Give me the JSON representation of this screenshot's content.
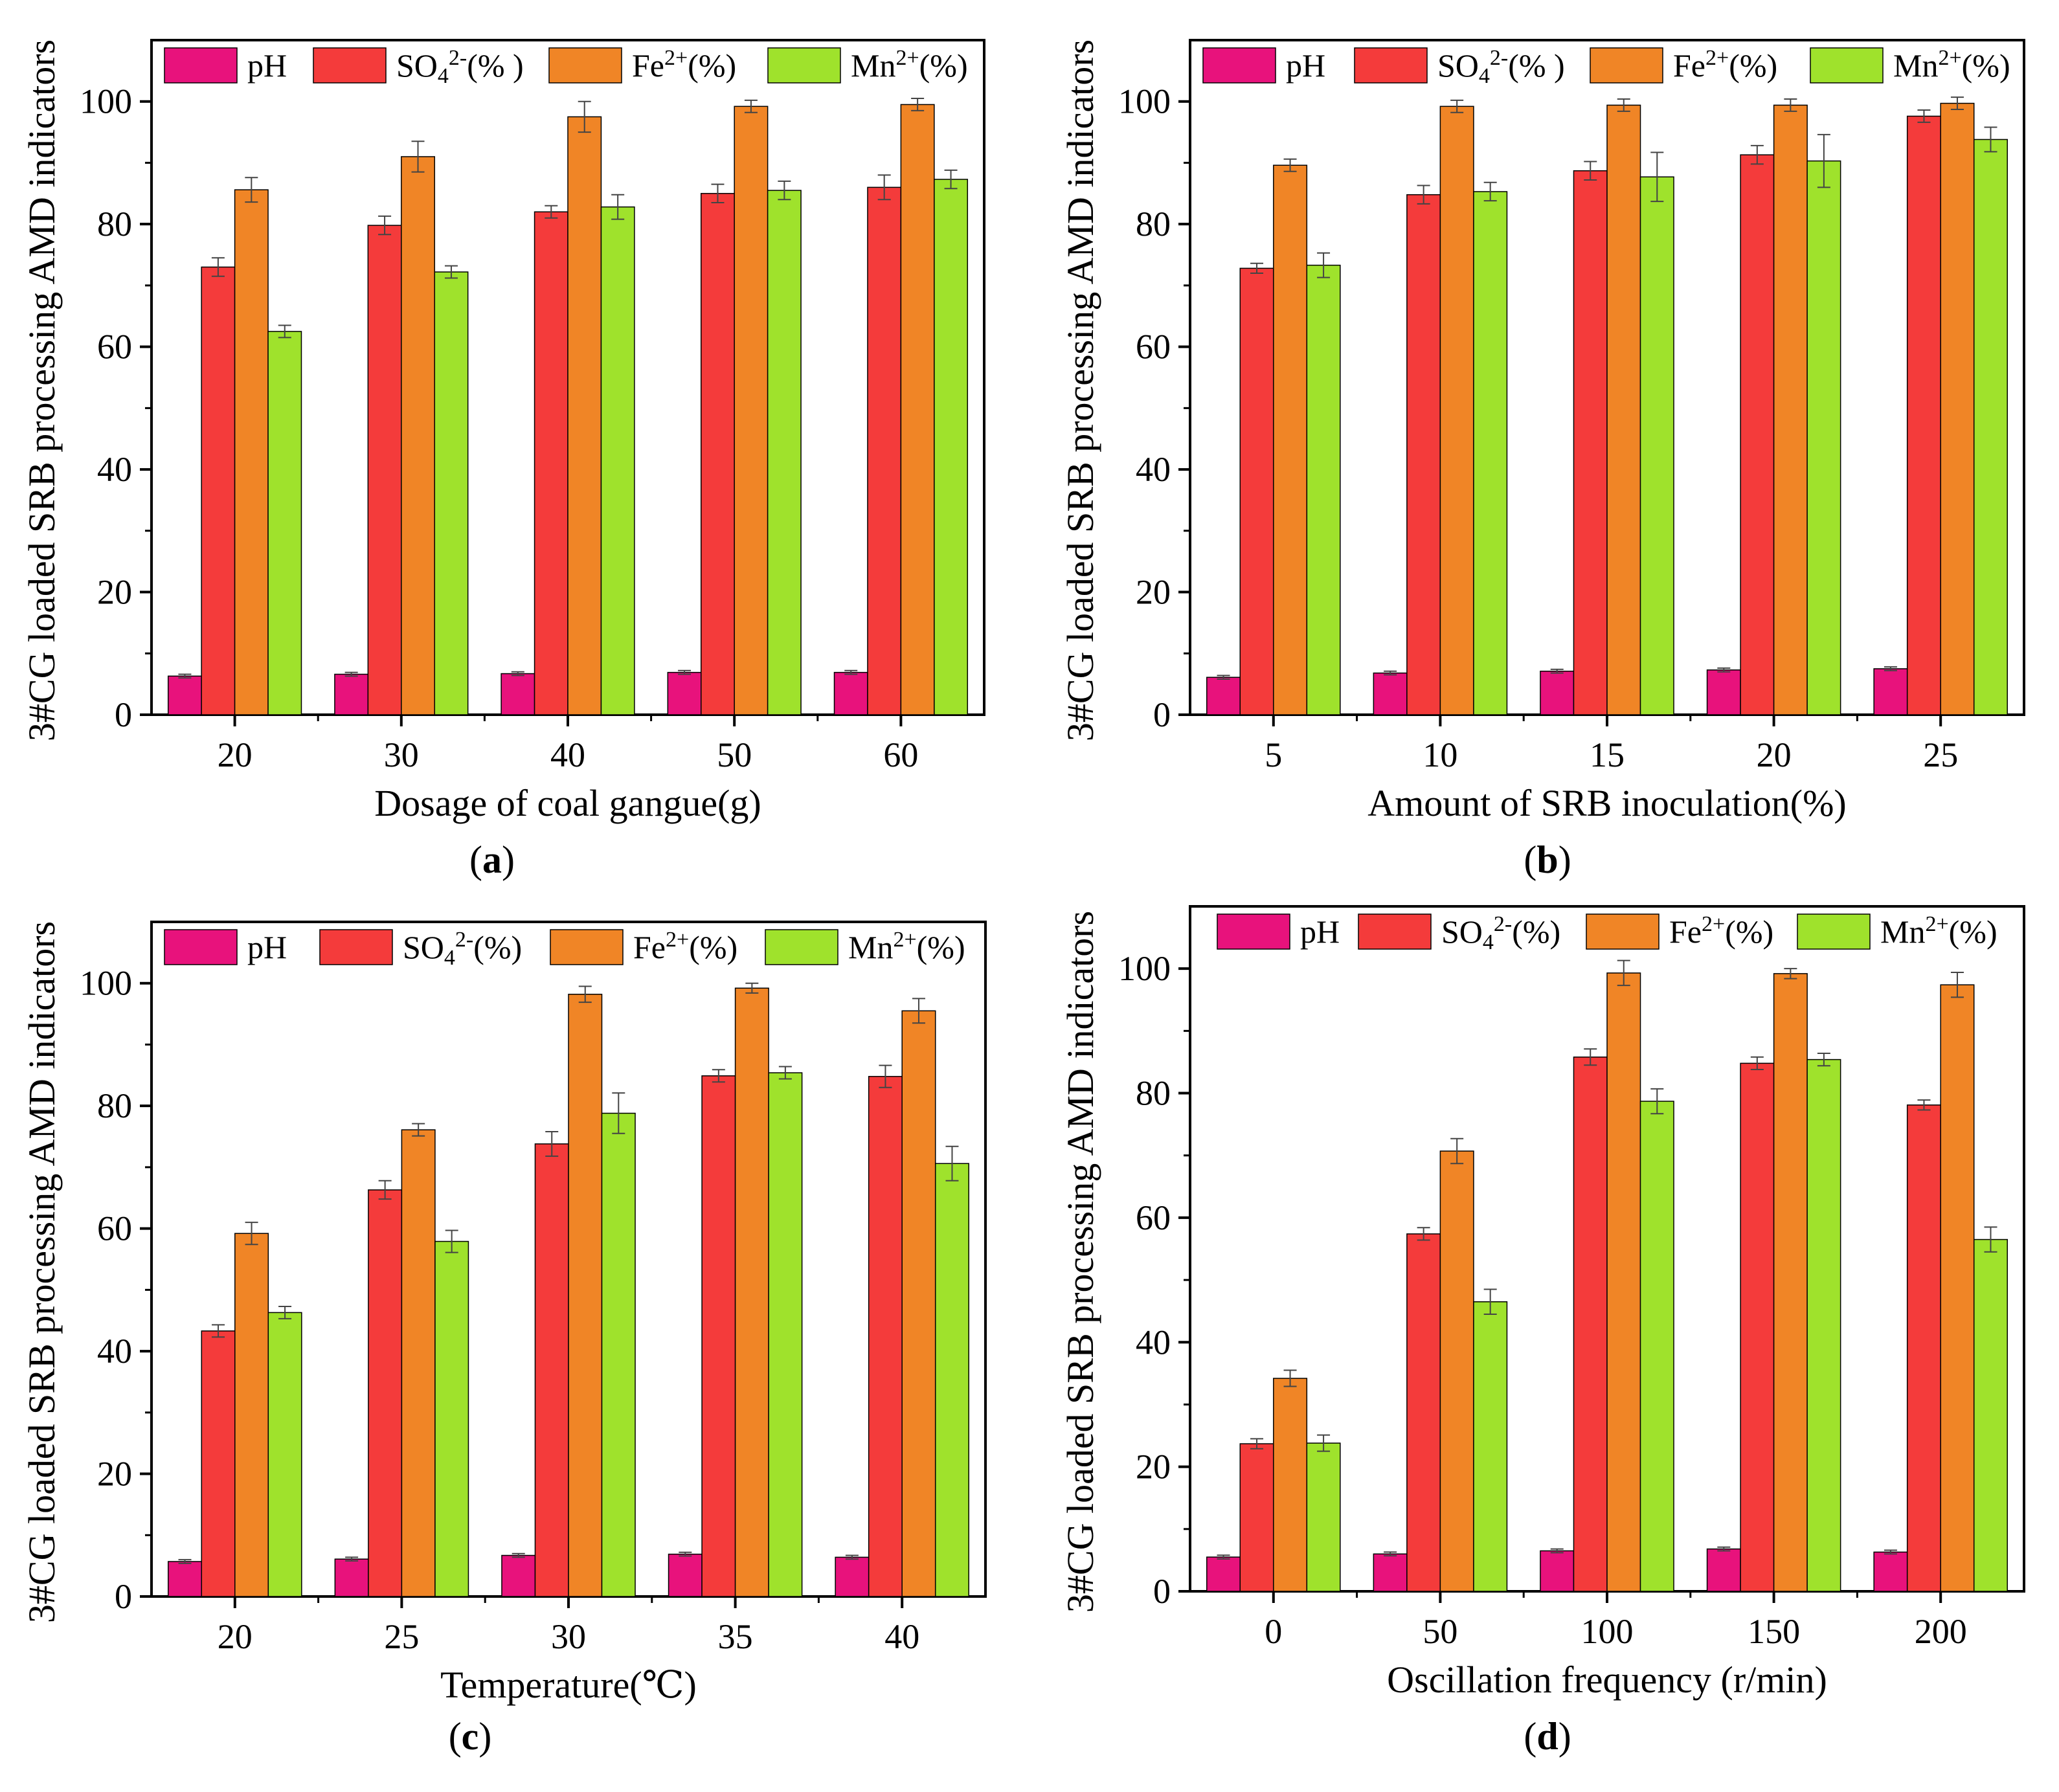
{
  "figure": {
    "ylabel": "3#CG loaded SRB processing AMD indicators",
    "colors": {
      "pH": "#e8127c",
      "SO4": "#f43b3b",
      "Fe": "#f08526",
      "Mn": "#9fe22c"
    }
  },
  "chart_data": [
    {
      "type": "bar",
      "panel": "a",
      "panel_label": "a",
      "title": "",
      "xlabel": "Dosage of coal gangue(g)",
      "ylabel": "3#CG loaded SRB processing AMD indicators",
      "categories": [
        "20",
        "30",
        "40",
        "50",
        "60"
      ],
      "ylim": [
        0,
        110
      ],
      "yticks": [
        "0",
        "20",
        "40",
        "60",
        "80",
        "100"
      ],
      "legend": [
        {
          "key": "pH",
          "text": "pH",
          "sup": "",
          "sub": "",
          "tail": ""
        },
        {
          "key": "SO4",
          "text": "SO",
          "sub": "4",
          "sup": "2-",
          "tail": "(% )"
        },
        {
          "key": "Fe",
          "text": "Fe",
          "sub": "",
          "sup": "2+",
          "tail": "(%)"
        },
        {
          "key": "Mn",
          "text": "Mn",
          "sub": "",
          "sup": "2+",
          "tail": "(%)"
        }
      ],
      "series": [
        {
          "name": "pH",
          "key": "pH",
          "values": [
            6.3,
            6.6,
            6.7,
            6.9,
            6.9
          ],
          "errors": [
            0.3,
            0.3,
            0.3,
            0.3,
            0.3
          ]
        },
        {
          "name": "SO42-(%)",
          "key": "SO4",
          "values": [
            73,
            79.8,
            82,
            85,
            86
          ],
          "errors": [
            1.5,
            1.5,
            1.0,
            1.5,
            2.0
          ]
        },
        {
          "name": "Fe2+(%)",
          "key": "Fe",
          "values": [
            85.6,
            91,
            97.5,
            99.2,
            99.5
          ],
          "errors": [
            2.0,
            2.5,
            2.5,
            1.0,
            1.0
          ]
        },
        {
          "name": "Mn2+(%)",
          "key": "Mn",
          "values": [
            62.5,
            72.2,
            82.8,
            85.5,
            87.3
          ],
          "errors": [
            1.0,
            1.0,
            2.0,
            1.5,
            1.5
          ]
        }
      ]
    },
    {
      "type": "bar",
      "panel": "b",
      "panel_label": "b",
      "title": "",
      "xlabel": "Amount of SRB inoculation(%)",
      "ylabel": "3#CG loaded SRB processing AMD indicators",
      "categories": [
        "5",
        "10",
        "15",
        "20",
        "25"
      ],
      "ylim": [
        0,
        110
      ],
      "yticks": [
        "0",
        "20",
        "40",
        "60",
        "80",
        "100"
      ],
      "legend": [
        {
          "key": "pH",
          "text": "pH",
          "sup": "",
          "sub": "",
          "tail": ""
        },
        {
          "key": "SO4",
          "text": "SO",
          "sub": "4",
          "sup": "2-",
          "tail": "(% )"
        },
        {
          "key": "Fe",
          "text": "Fe",
          "sub": "",
          "sup": "2+",
          "tail": "(%)"
        },
        {
          "key": "Mn",
          "text": "Mn",
          "sub": "",
          "sup": "2+",
          "tail": "(%)"
        }
      ],
      "series": [
        {
          "name": "pH",
          "key": "pH",
          "values": [
            6.1,
            6.8,
            7.1,
            7.3,
            7.5
          ],
          "errors": [
            0.3,
            0.3,
            0.3,
            0.3,
            0.3
          ]
        },
        {
          "name": "SO42-(%)",
          "key": "SO4",
          "values": [
            72.8,
            84.8,
            88.7,
            91.3,
            97.6
          ],
          "errors": [
            0.8,
            1.5,
            1.5,
            1.5,
            1.0
          ]
        },
        {
          "name": "Fe2+(%)",
          "key": "Fe",
          "values": [
            89.6,
            99.2,
            99.4,
            99.4,
            99.7
          ],
          "errors": [
            1.0,
            1.0,
            1.0,
            1.0,
            1.0
          ]
        },
        {
          "name": "Mn2+(%)",
          "key": "Mn",
          "values": [
            73.3,
            85.3,
            87.7,
            90.3,
            93.8
          ],
          "errors": [
            2.0,
            1.5,
            4.0,
            4.3,
            2.0
          ]
        }
      ]
    },
    {
      "type": "bar",
      "panel": "c",
      "panel_label": "c",
      "title": "",
      "xlabel": "Temperature(℃)",
      "ylabel": "3#CG loaded SRB processing AMD indicators",
      "categories": [
        "20",
        "25",
        "30",
        "35",
        "40"
      ],
      "ylim": [
        0,
        110
      ],
      "yticks": [
        "0",
        "20",
        "40",
        "60",
        "80",
        "100"
      ],
      "legend": [
        {
          "key": "pH",
          "text": "pH",
          "sup": "",
          "sub": "",
          "tail": ""
        },
        {
          "key": "SO4",
          "text": "SO",
          "sub": "4",
          "sup": "2-",
          "tail": "(%)"
        },
        {
          "key": "Fe",
          "text": "Fe",
          "sub": "",
          "sup": "2+",
          "tail": "(%)"
        },
        {
          "key": "Mn",
          "text": "Mn",
          "sub": "",
          "sup": "2+",
          "tail": "(%)"
        }
      ],
      "series": [
        {
          "name": "pH",
          "key": "pH",
          "values": [
            5.7,
            6.1,
            6.7,
            6.9,
            6.4
          ],
          "errors": [
            0.3,
            0.3,
            0.3,
            0.3,
            0.3
          ]
        },
        {
          "name": "SO42-(%)",
          "key": "SO4",
          "values": [
            43.3,
            66.3,
            73.8,
            84.9,
            84.8
          ],
          "errors": [
            1.0,
            1.5,
            2.0,
            1.0,
            1.8
          ]
        },
        {
          "name": "Fe2+(%)",
          "key": "Fe",
          "values": [
            59.2,
            76.1,
            98.2,
            99.2,
            95.5
          ],
          "errors": [
            1.8,
            1.0,
            1.3,
            0.8,
            2.0
          ]
        },
        {
          "name": "Mn2+(%)",
          "key": "Mn",
          "values": [
            46.3,
            57.9,
            78.8,
            85.4,
            70.6
          ],
          "errors": [
            1.0,
            1.8,
            3.3,
            1.0,
            2.8
          ]
        }
      ]
    },
    {
      "type": "bar",
      "panel": "d",
      "panel_label": "d",
      "title": "",
      "xlabel": "Oscillation frequency (r/min)",
      "ylabel": "3#CG loaded SRB processing AMD indicators",
      "categories": [
        "0",
        "50",
        "100",
        "150",
        "200"
      ],
      "ylim": [
        0,
        110
      ],
      "yticks": [
        "0",
        "20",
        "40",
        "60",
        "80",
        "100"
      ],
      "legend": [
        {
          "key": "pH",
          "text": "pH",
          "sup": "",
          "sub": "",
          "tail": ""
        },
        {
          "key": "SO4",
          "text": "SO",
          "sub": "4",
          "sup": "2-",
          "tail": "(%)"
        },
        {
          "key": "Fe",
          "text": "Fe",
          "sub": "",
          "sup": "2+",
          "tail": "(%)"
        },
        {
          "key": "Mn",
          "text": "Mn",
          "sub": "",
          "sup": "2+",
          "tail": "(%)"
        }
      ],
      "series": [
        {
          "name": "pH",
          "key": "pH",
          "values": [
            5.5,
            6.0,
            6.5,
            6.8,
            6.3
          ],
          "errors": [
            0.3,
            0.3,
            0.3,
            0.3,
            0.3
          ]
        },
        {
          "name": "SO42-(%)",
          "key": "SO4",
          "values": [
            23.7,
            57.4,
            85.8,
            84.8,
            78.1
          ],
          "errors": [
            0.8,
            1.0,
            1.3,
            1.0,
            0.8
          ]
        },
        {
          "name": "Fe2+(%)",
          "key": "Fe",
          "values": [
            34.2,
            70.7,
            99.3,
            99.2,
            97.4
          ],
          "errors": [
            1.3,
            2.0,
            2.0,
            0.8,
            2.0
          ]
        },
        {
          "name": "Mn2+(%)",
          "key": "Mn",
          "values": [
            23.8,
            46.5,
            78.7,
            85.4,
            56.5
          ],
          "errors": [
            1.3,
            2.0,
            2.0,
            1.0,
            2.0
          ]
        }
      ]
    }
  ]
}
